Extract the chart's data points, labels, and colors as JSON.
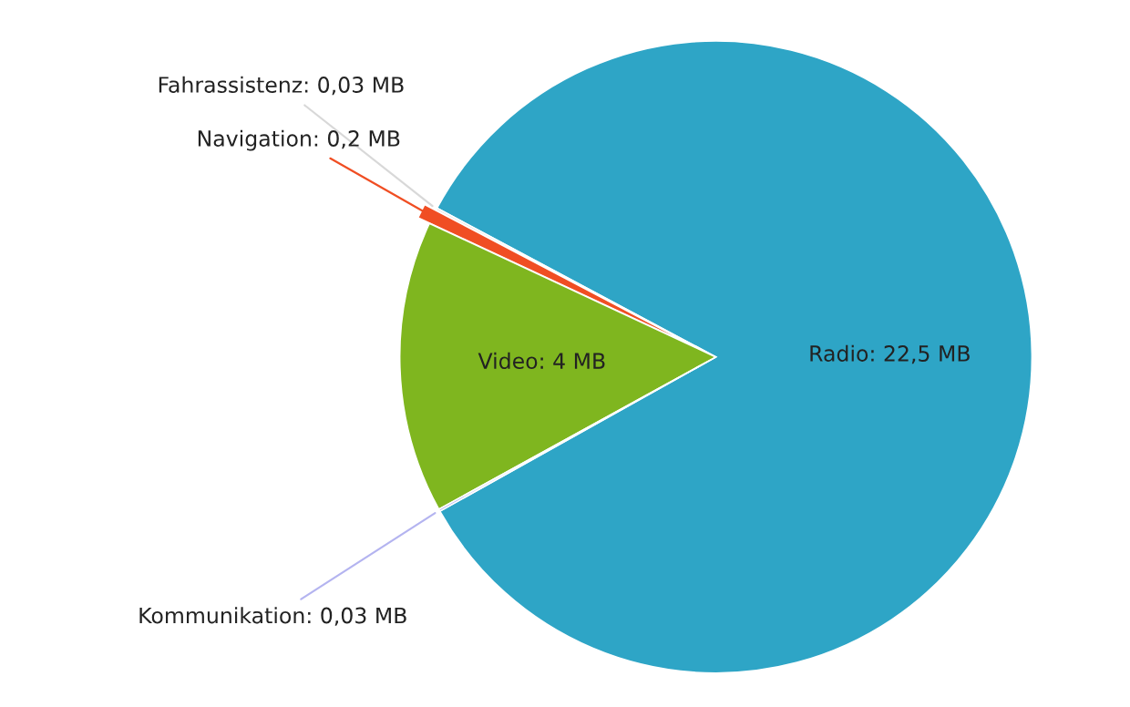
{
  "chart_data": {
    "type": "pie",
    "categories": [
      "Radio",
      "Fahrassistenz",
      "Navigation",
      "Video",
      "Kommunikation"
    ],
    "values": [
      22.5,
      0.03,
      0.2,
      4,
      0.03
    ],
    "value_labels": [
      "22,5 MB",
      "0,03 MB",
      "0,2 MB",
      "4 MB",
      "0,03 MB"
    ],
    "colors": [
      "#2ea5c6",
      "#d8d8d8",
      "#f04e23",
      "#7fb61f",
      "#b4b4f0"
    ],
    "legend": false
  }
}
